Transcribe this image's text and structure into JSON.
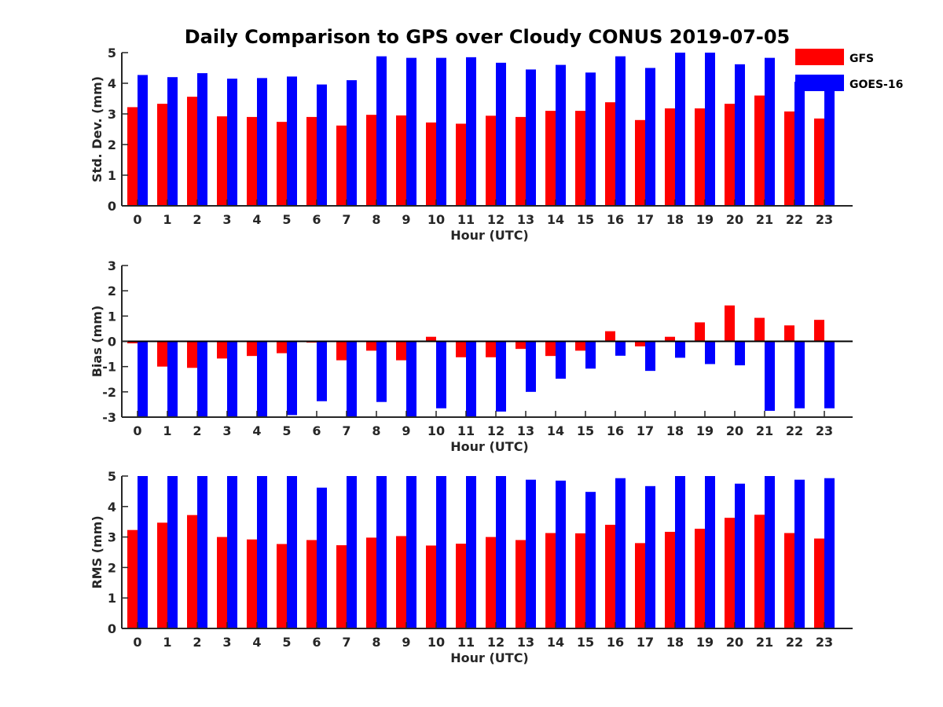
{
  "figure": {
    "title": "Daily Comparison to GPS over Cloudy CONUS 2019-07-05",
    "legend": {
      "placement": "top-right",
      "entries": [
        {
          "label": "GFS",
          "color": "#ff0000"
        },
        {
          "label": "GOES-16",
          "color": "#0000ff"
        }
      ]
    }
  },
  "chart_data": [
    {
      "type": "bar",
      "xlabel": "Hour (UTC)",
      "ylabel": "Std. Dev. (mm)",
      "ylim": [
        0,
        5
      ],
      "yticks": [
        0,
        1,
        2,
        3,
        4,
        5
      ],
      "grid": false,
      "categories": [
        "0",
        "1",
        "2",
        "3",
        "4",
        "5",
        "6",
        "7",
        "8",
        "9",
        "10",
        "11",
        "12",
        "13",
        "14",
        "15",
        "16",
        "17",
        "18",
        "19",
        "20",
        "21",
        "22",
        "23"
      ],
      "series": [
        {
          "name": "GFS",
          "color": "#ff0000",
          "values": [
            3.22,
            3.33,
            3.56,
            2.92,
            2.9,
            2.74,
            2.9,
            2.62,
            2.97,
            2.95,
            2.72,
            2.68,
            2.94,
            2.9,
            3.1,
            3.1,
            3.38,
            2.8,
            3.18,
            3.18,
            3.33,
            3.6,
            3.08,
            2.85
          ]
        },
        {
          "name": "GOES-16",
          "color": "#0000ff",
          "values": [
            4.27,
            4.2,
            4.33,
            4.15,
            4.17,
            4.22,
            3.96,
            4.1,
            4.88,
            4.83,
            4.83,
            4.85,
            4.67,
            4.45,
            4.6,
            4.35,
            4.88,
            4.5,
            5.0,
            5.0,
            4.62,
            4.83,
            4.05,
            4.1
          ]
        }
      ]
    },
    {
      "type": "bar",
      "xlabel": "Hour (UTC)",
      "ylabel": "Bias (mm)",
      "ylim": [
        -3,
        3
      ],
      "yticks": [
        -3,
        -2,
        -1,
        0,
        1,
        2,
        3
      ],
      "grid": false,
      "categories": [
        "0",
        "1",
        "2",
        "3",
        "4",
        "5",
        "6",
        "7",
        "8",
        "9",
        "10",
        "11",
        "12",
        "13",
        "14",
        "15",
        "16",
        "17",
        "18",
        "19",
        "20",
        "21",
        "22",
        "23"
      ],
      "series": [
        {
          "name": "GFS",
          "color": "#ff0000",
          "values": [
            -0.08,
            -1.0,
            -1.05,
            -0.68,
            -0.58,
            -0.47,
            -0.05,
            -0.75,
            -0.37,
            -0.75,
            0.18,
            -0.63,
            -0.63,
            -0.3,
            -0.58,
            -0.37,
            0.4,
            -0.2,
            0.18,
            0.75,
            1.42,
            0.93,
            0.63,
            0.85
          ]
        },
        {
          "name": "GOES-16",
          "color": "#0000ff",
          "values": [
            -3.0,
            -3.0,
            -3.0,
            -3.0,
            -3.0,
            -2.92,
            -2.37,
            -3.0,
            -2.4,
            -3.0,
            -2.65,
            -3.0,
            -2.78,
            -2.0,
            -1.48,
            -1.08,
            -0.57,
            -1.17,
            -0.65,
            -0.9,
            -0.95,
            -2.75,
            -2.65,
            -2.65
          ]
        }
      ]
    },
    {
      "type": "bar",
      "xlabel": "Hour (UTC)",
      "ylabel": "RMS (mm)",
      "ylim": [
        0,
        5
      ],
      "yticks": [
        0,
        1,
        2,
        3,
        4,
        5
      ],
      "grid": false,
      "categories": [
        "0",
        "1",
        "2",
        "3",
        "4",
        "5",
        "6",
        "7",
        "8",
        "9",
        "10",
        "11",
        "12",
        "13",
        "14",
        "15",
        "16",
        "17",
        "18",
        "19",
        "20",
        "21",
        "22",
        "23"
      ],
      "series": [
        {
          "name": "GFS",
          "color": "#ff0000",
          "values": [
            3.23,
            3.47,
            3.72,
            3.0,
            2.92,
            2.77,
            2.9,
            2.73,
            2.98,
            3.03,
            2.72,
            2.78,
            3.0,
            2.9,
            3.13,
            3.12,
            3.4,
            2.8,
            3.17,
            3.27,
            3.63,
            3.73,
            3.13,
            2.95
          ]
        },
        {
          "name": "GOES-16",
          "color": "#0000ff",
          "values": [
            5.0,
            5.0,
            5.0,
            5.0,
            5.0,
            5.0,
            4.62,
            5.0,
            5.0,
            5.0,
            5.0,
            5.0,
            5.0,
            4.88,
            4.85,
            4.48,
            4.93,
            4.67,
            5.0,
            5.0,
            4.75,
            5.0,
            4.88,
            4.93
          ]
        }
      ]
    }
  ]
}
